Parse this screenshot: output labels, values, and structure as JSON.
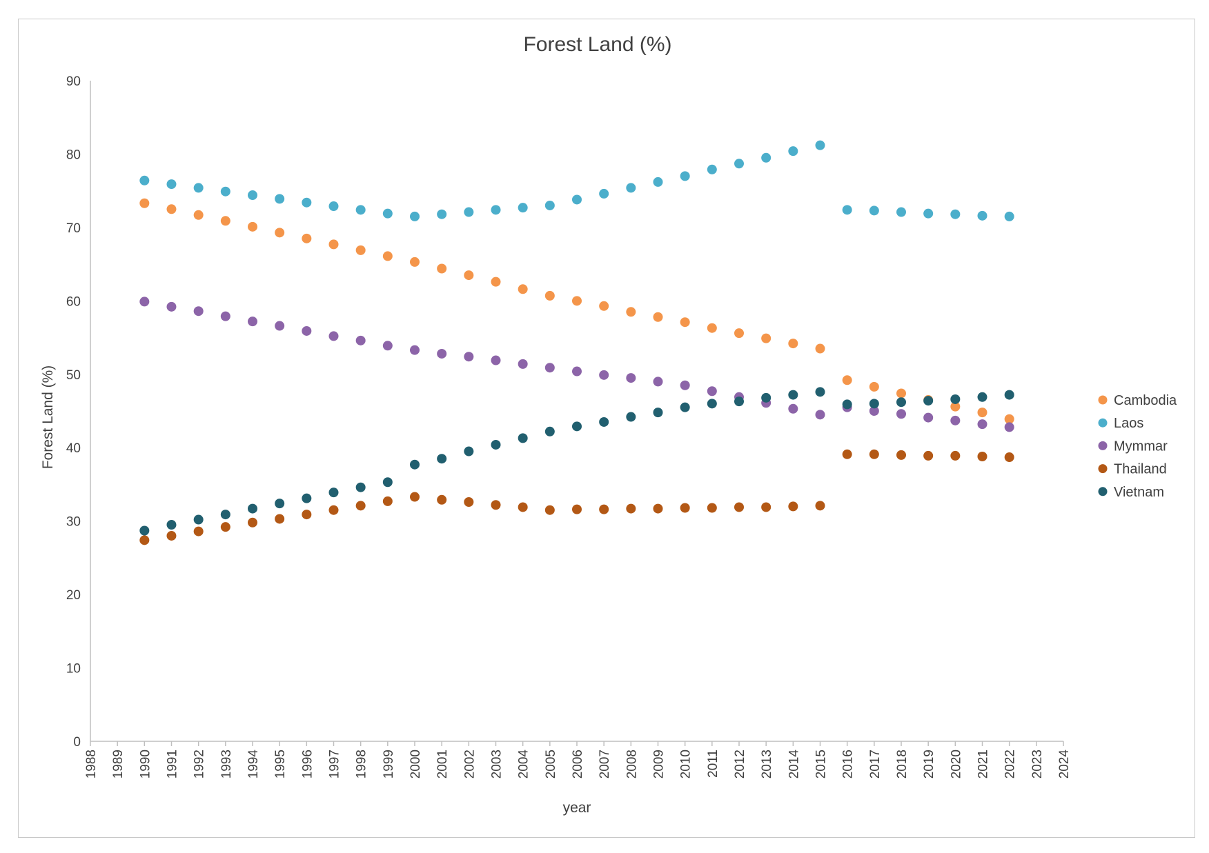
{
  "chart_data": {
    "type": "scatter",
    "title": "Forest Land  (%)",
    "xlabel": "year",
    "ylabel": "Forest Land  (%)",
    "xlim": [
      1988,
      2024
    ],
    "ylim": [
      0,
      90
    ],
    "x_ticks": [
      "1988",
      "1989",
      "1990",
      "1991",
      "1992",
      "1993",
      "1994",
      "1995",
      "1996",
      "1997",
      "1998",
      "1999",
      "2000",
      "2001",
      "2002",
      "2003",
      "2004",
      "2005",
      "2006",
      "2007",
      "2008",
      "2009",
      "2010",
      "2011",
      "2012",
      "2013",
      "2014",
      "2015",
      "2016",
      "2017",
      "2018",
      "2019",
      "2020",
      "2021",
      "2022",
      "2023",
      "2024"
    ],
    "y_ticks": [
      "0",
      "10",
      "20",
      "30",
      "40",
      "50",
      "60",
      "70",
      "80",
      "90"
    ],
    "grid": false,
    "legend_position": "right",
    "x": [
      1990,
      1991,
      1992,
      1993,
      1994,
      1995,
      1996,
      1997,
      1998,
      1999,
      2000,
      2001,
      2002,
      2003,
      2004,
      2005,
      2006,
      2007,
      2008,
      2009,
      2010,
      2011,
      2012,
      2013,
      2014,
      2015,
      2016,
      2017,
      2018,
      2019,
      2020,
      2021,
      2022
    ],
    "series": [
      {
        "name": "Cambodia",
        "color": "#F4954A",
        "values": [
          73.3,
          72.5,
          71.7,
          70.9,
          70.1,
          69.3,
          68.5,
          67.7,
          66.9,
          66.1,
          65.3,
          64.4,
          63.5,
          62.6,
          61.6,
          60.7,
          60.0,
          59.3,
          58.5,
          57.8,
          57.1,
          56.3,
          55.6,
          54.9,
          54.2,
          53.5,
          49.2,
          48.3,
          47.4,
          46.5,
          45.6,
          44.8,
          43.9
        ]
      },
      {
        "name": "Laos",
        "color": "#4BAECB",
        "values": [
          76.4,
          75.9,
          75.4,
          74.9,
          74.4,
          73.9,
          73.4,
          72.9,
          72.4,
          71.9,
          71.5,
          71.8,
          72.1,
          72.4,
          72.7,
          73.0,
          73.8,
          74.6,
          75.4,
          76.2,
          77.0,
          77.9,
          78.7,
          79.5,
          80.4,
          81.2,
          72.4,
          72.3,
          72.1,
          71.9,
          71.8,
          71.6,
          71.5
        ]
      },
      {
        "name": "Mymmar",
        "color": "#8C64A8",
        "values": [
          59.9,
          59.2,
          58.6,
          57.9,
          57.2,
          56.6,
          55.9,
          55.2,
          54.6,
          53.9,
          53.3,
          52.8,
          52.4,
          51.9,
          51.4,
          50.9,
          50.4,
          49.9,
          49.5,
          49.0,
          48.5,
          47.7,
          46.9,
          46.1,
          45.3,
          44.5,
          45.5,
          45.0,
          44.6,
          44.1,
          43.7,
          43.2,
          42.8
        ]
      },
      {
        "name": "Thailand",
        "color": "#B35815",
        "values": [
          27.4,
          28.0,
          28.6,
          29.2,
          29.8,
          30.3,
          30.9,
          31.5,
          32.1,
          32.7,
          33.3,
          32.9,
          32.6,
          32.2,
          31.9,
          31.5,
          31.6,
          31.6,
          31.7,
          31.7,
          31.8,
          31.8,
          31.9,
          31.9,
          32.0,
          32.1,
          39.1,
          39.1,
          39.0,
          38.9,
          38.9,
          38.8,
          38.7
        ]
      },
      {
        "name": "Vietnam",
        "color": "#215F6F",
        "values": [
          28.7,
          29.5,
          30.2,
          30.9,
          31.7,
          32.4,
          33.1,
          33.9,
          34.6,
          35.3,
          37.7,
          38.5,
          39.5,
          40.4,
          41.3,
          42.2,
          42.9,
          43.5,
          44.2,
          44.8,
          45.5,
          46.0,
          46.3,
          46.8,
          47.2,
          47.6,
          45.9,
          46.0,
          46.2,
          46.4,
          46.6,
          46.9,
          47.2
        ]
      }
    ]
  }
}
